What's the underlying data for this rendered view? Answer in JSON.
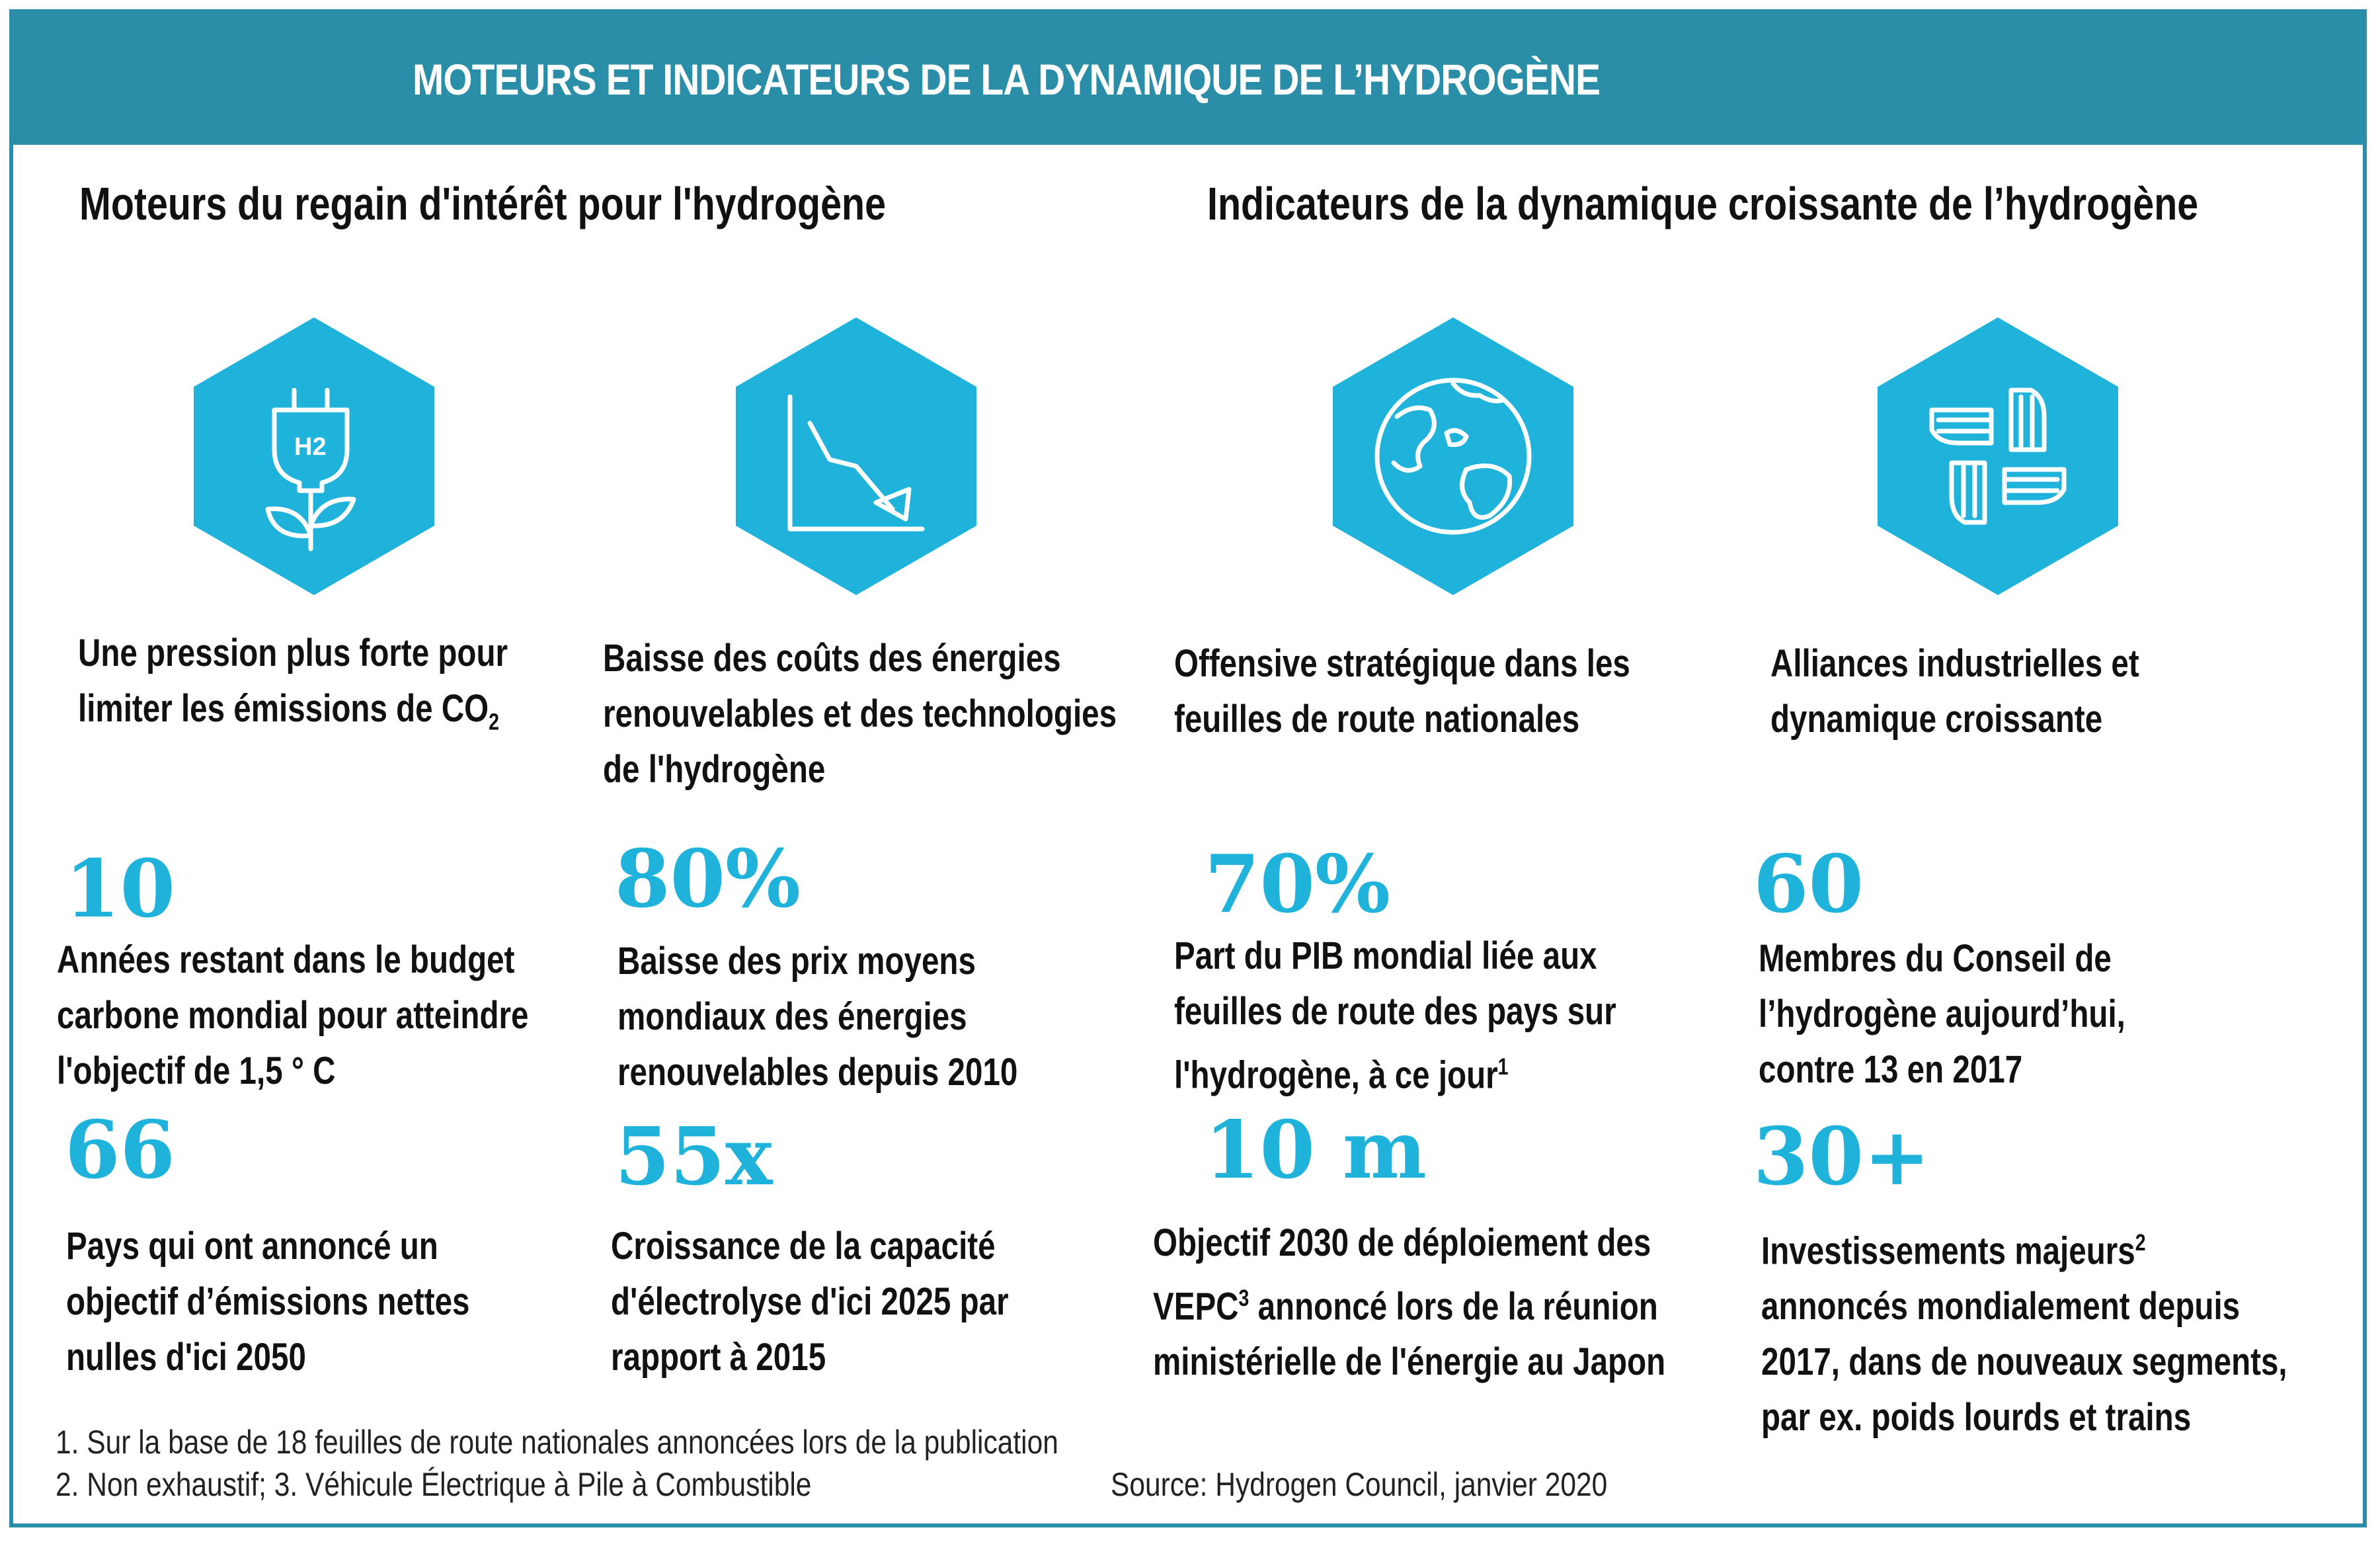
{
  "header": {
    "title": "MOTEURS ET INDICATEURS DE LA DYNAMIQUE DE L’HYDROGÈNE"
  },
  "sections": {
    "left_heading": "Moteurs du regain d'intérêt pour l'hydrogène",
    "right_heading": "Indicateurs de la dynamique croissante de l’hydrogène"
  },
  "colors": {
    "accent": "#1fb3dc",
    "header_bg": "#2a8ea8"
  },
  "drivers": [
    {
      "icon": "hydrogen-plug-plant-icon",
      "icon_text": "H2",
      "line1": "Une pression plus forte pour",
      "line2": "limiter les émissions de CO",
      "sub": "2"
    },
    {
      "icon": "declining-cost-chart-icon",
      "line1": "Baisse des coûts des énergies",
      "line2": "renouvelables et des technologies",
      "line3": "de l'hydrogène"
    },
    {
      "icon": "globe-icon",
      "line1": "Offensive stratégique dans les",
      "line2": "feuilles de route nationales"
    },
    {
      "icon": "joined-hands-icon",
      "line1": "Alliances industrielles et",
      "line2": "dynamique croissante"
    }
  ],
  "stats": [
    {
      "value": "10",
      "line1": "Années restant dans le budget",
      "line2": "carbone mondial pour atteindre",
      "line3": "l'objectif de 1,5 ° C"
    },
    {
      "value": "80%",
      "line1": "Baisse des prix moyens",
      "line2": "mondiaux des énergies",
      "line3": "renouvelables depuis 2010"
    },
    {
      "value": "70%",
      "line1": "Part du PIB mondial liée aux",
      "line2": "feuilles de route des pays sur",
      "line3": "l'hydrogène, à ce jour",
      "sup": "1"
    },
    {
      "value": "60",
      "line1": "Membres du Conseil de",
      "line2": "l’hydrogène aujourd’hui,",
      "line3": "contre 13 en 2017"
    },
    {
      "value": "66",
      "line1": "Pays qui ont annoncé un",
      "line2": "objectif d’émissions nettes",
      "line3": "nulles d'ici 2050"
    },
    {
      "value": "55x",
      "line1": "Croissance de la capacité",
      "line2": "d'électrolyse d'ici 2025 par",
      "line3": "rapport à 2015"
    },
    {
      "value": "10 m",
      "line1": "Objectif 2030 de déploiement des",
      "line2a": "VEPC",
      "sup": "3",
      "line2b": " annoncé lors de la réunion",
      "line3": "ministérielle de l'énergie au Japon"
    },
    {
      "value": "30+",
      "line1": "Investissements majeurs",
      "sup": "2",
      "line2": "annoncés mondialement depuis",
      "line3": "2017, dans de nouveaux segments,",
      "line4": "par ex. poids lourds et trains"
    }
  ],
  "footnotes": {
    "note1": "1. Sur la base de 18 feuilles de route nationales annoncées lors de la publication",
    "note2": "2. Non exhaustif;   3. Véhicule Électrique à Pile à Combustible",
    "source": "Source: Hydrogen Council, janvier 2020"
  }
}
